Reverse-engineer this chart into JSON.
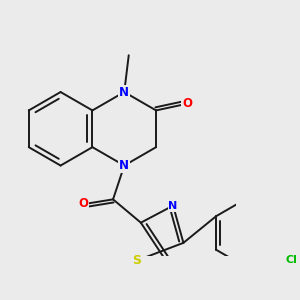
{
  "background_color": "#ebebeb",
  "bond_color": "#1a1a1a",
  "bond_width": 1.4,
  "atom_colors": {
    "N": "#0000ff",
    "O": "#ff0000",
    "S": "#cccc00",
    "Cl": "#00bb00",
    "C": "#1a1a1a"
  },
  "font_size_atom": 8.5
}
